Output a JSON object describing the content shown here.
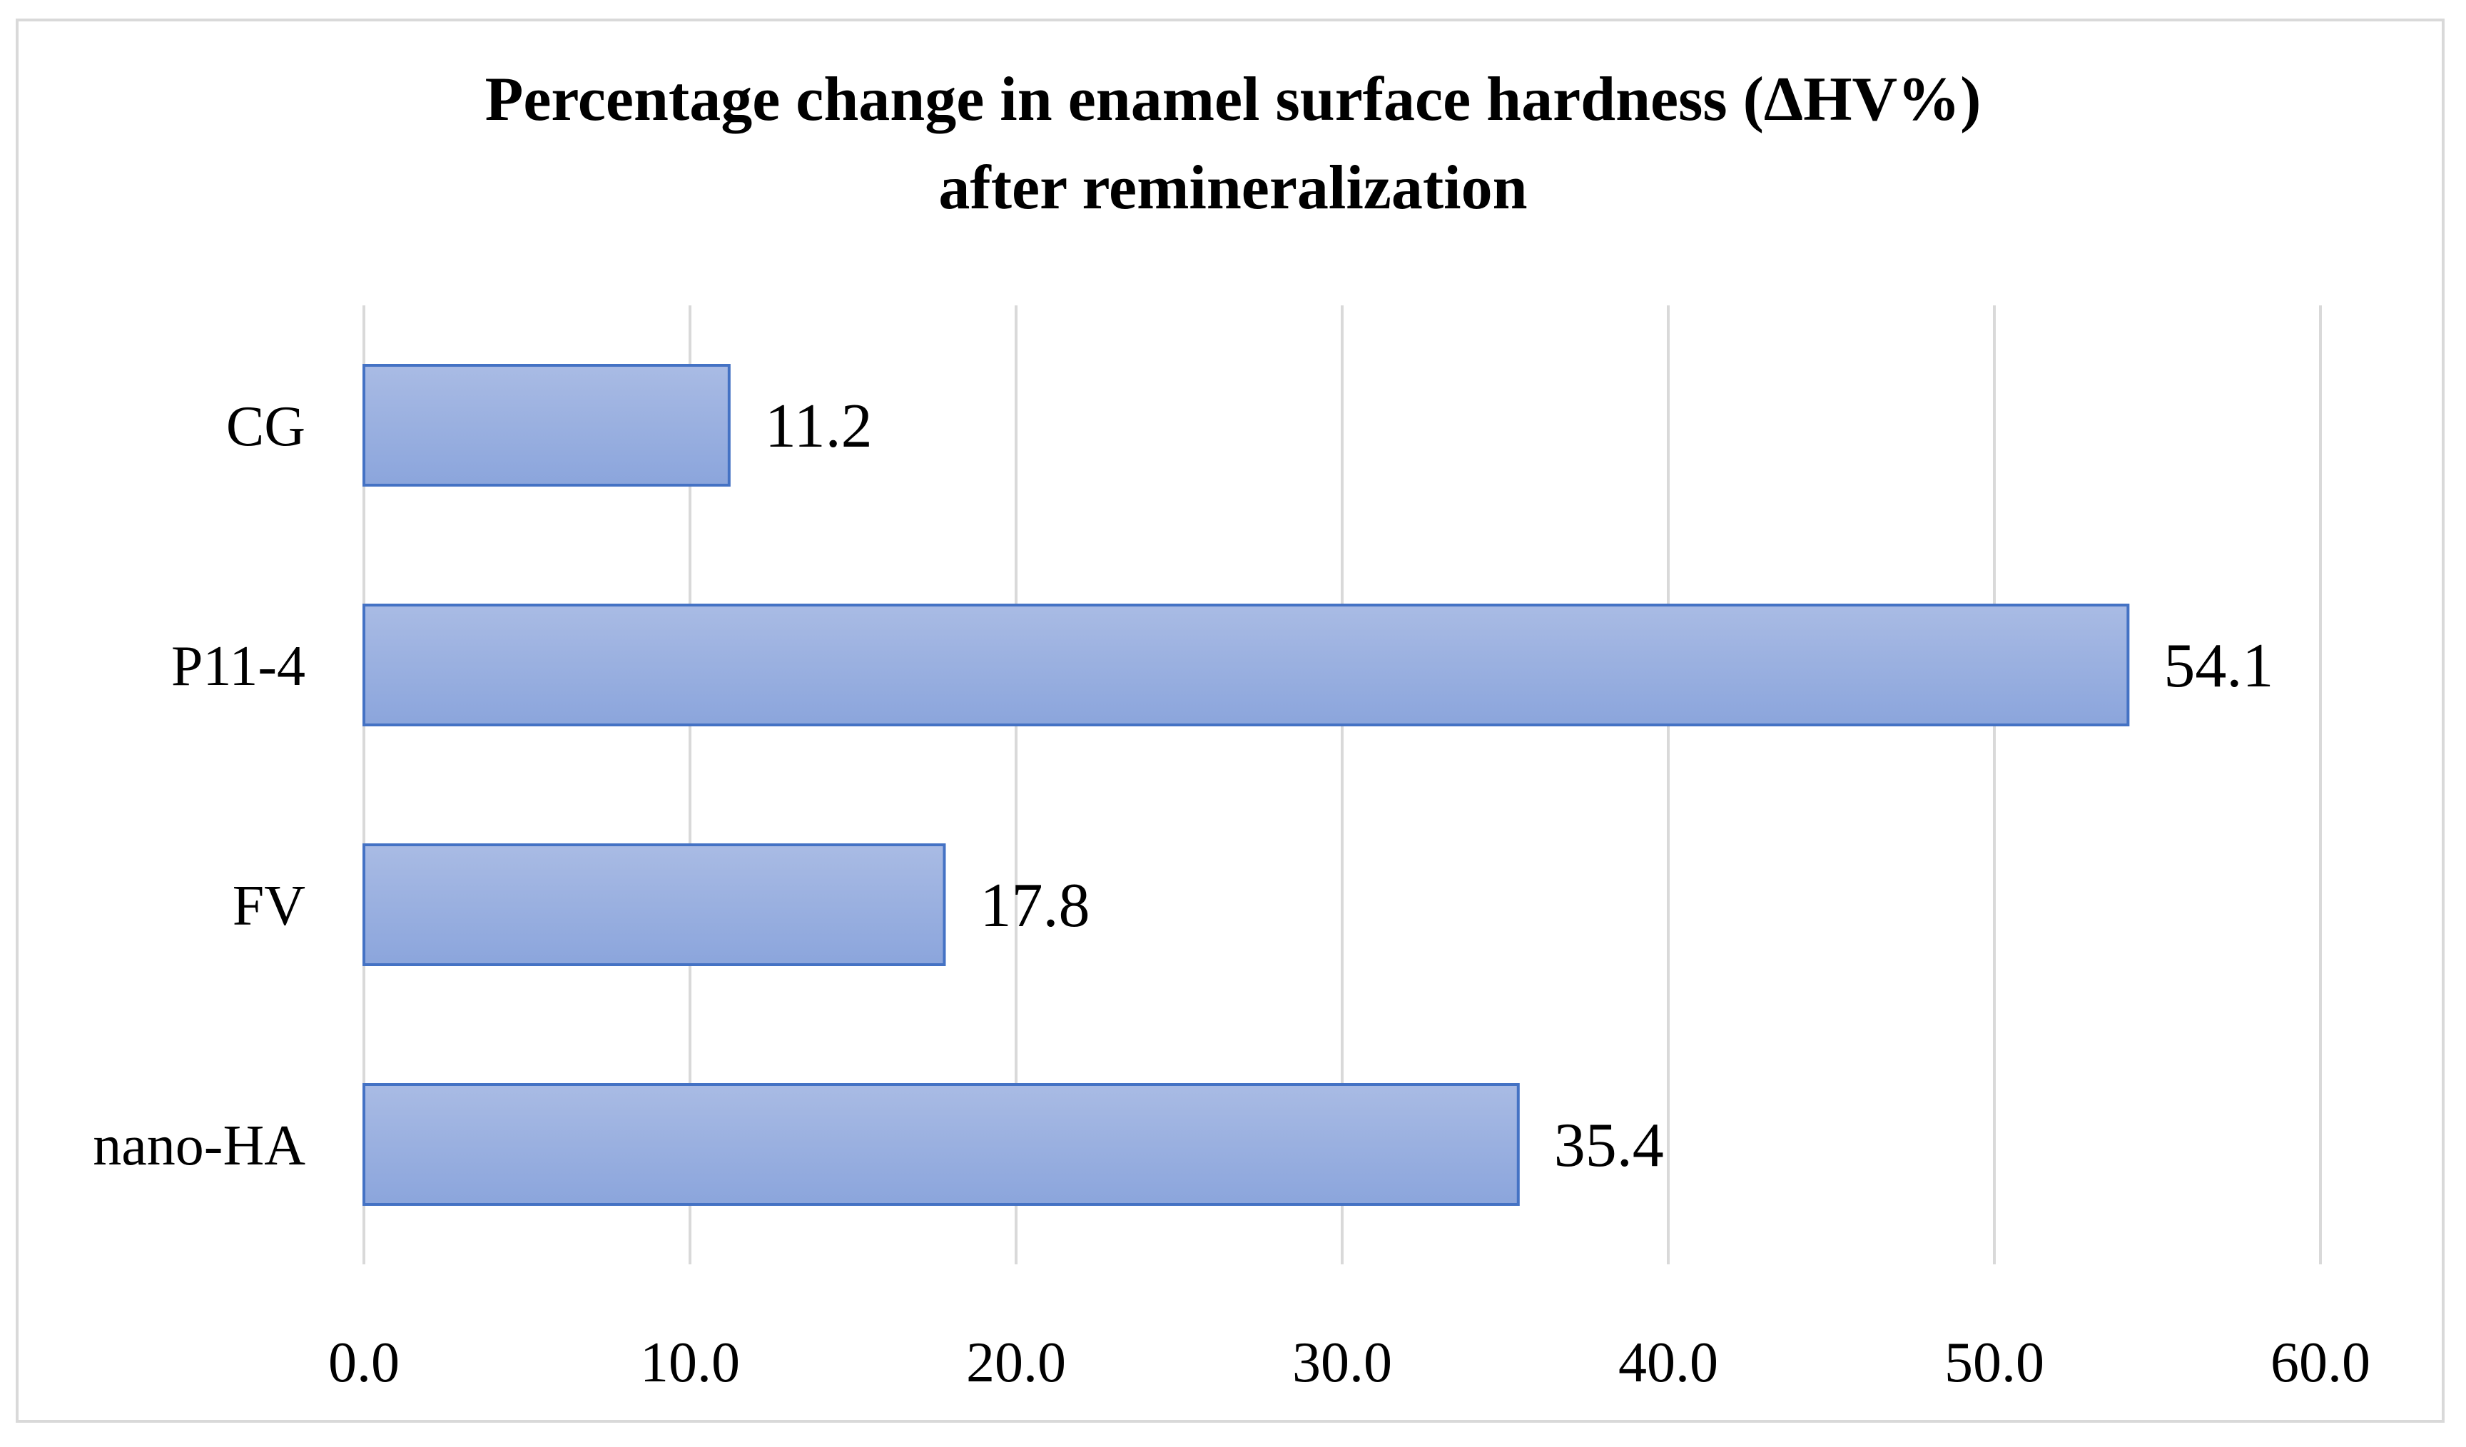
{
  "chart_data": {
    "type": "bar",
    "orientation": "horizontal",
    "title_lines": [
      "Percentage change in enamel surface hardness (ΔHV%)",
      "after remineralization"
    ],
    "categories": [
      "CG",
      "P11-4",
      "FV",
      "nano-HA"
    ],
    "values": [
      11.2,
      54.1,
      17.8,
      35.4
    ],
    "value_labels": [
      "11.2",
      "54.1",
      "17.8",
      "35.4"
    ],
    "xticks": [
      0,
      10,
      20,
      30,
      40,
      50,
      60
    ],
    "xtick_labels": [
      "0.0",
      "10.0",
      "20.0",
      "30.0",
      "40.0",
      "50.0",
      "60.0"
    ],
    "xlim": [
      0,
      60
    ],
    "xlabel": "",
    "ylabel": "",
    "grid": "vertical",
    "legend": "none",
    "colors": {
      "bar_fill_top": "#a9bbe4",
      "bar_fill_bottom": "#8ba5dc",
      "bar_stroke": "#4472c4",
      "grid": "#d9d9d9",
      "border": "#d9d9d9",
      "text": "#000000"
    }
  }
}
